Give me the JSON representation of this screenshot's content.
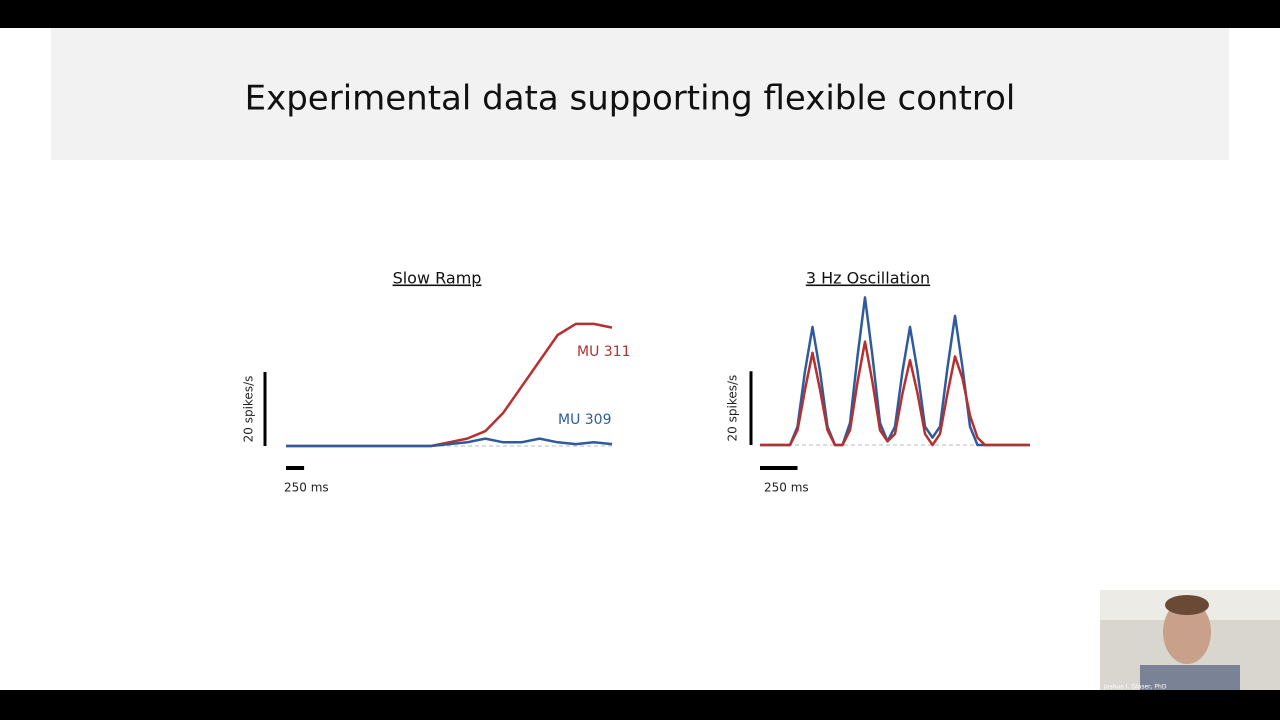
{
  "slide": {
    "title": "Experimental data supporting flexible control"
  },
  "chart_data": [
    {
      "type": "line",
      "title": "Slow Ramp",
      "x": [
        0,
        250,
        500,
        750,
        1000,
        1250,
        1500,
        1750,
        2000,
        2250,
        2500,
        2750,
        3000,
        3250,
        3500,
        3750,
        4000,
        4250,
        4500
      ],
      "series": [
        {
          "name": "MU 311",
          "color": "#b5302f",
          "values": [
            0,
            0,
            0,
            0,
            0,
            0,
            0,
            0,
            0,
            1,
            2,
            4,
            9,
            16,
            23,
            30,
            33,
            33,
            32
          ]
        },
        {
          "name": "MU 309",
          "color": "#2f5b9c",
          "values": [
            0,
            0,
            0,
            0,
            0,
            0,
            0,
            0,
            0,
            0.5,
            1,
            2,
            1,
            1,
            2,
            1,
            0.5,
            1,
            0.5
          ]
        }
      ],
      "xlim": [
        0,
        4500
      ],
      "ylim": [
        0,
        40
      ],
      "scale_bar": {
        "x": {
          "value": 250,
          "label": "250 ms"
        },
        "y": {
          "value": 20,
          "label": "20 spikes/s"
        }
      }
    },
    {
      "type": "line",
      "title": "3 Hz Oscillation",
      "x": [
        0,
        50,
        100,
        150,
        200,
        250,
        300,
        350,
        400,
        450,
        500,
        550,
        600,
        650,
        700,
        750,
        800,
        850,
        900,
        950,
        1000,
        1050,
        1100,
        1150,
        1200,
        1250,
        1300,
        1350,
        1400,
        1450,
        1500,
        1550,
        1600,
        1650,
        1700,
        1750,
        1800
      ],
      "series": [
        {
          "name": "Blue",
          "color": "#2f5b9c",
          "values": [
            0,
            0,
            0,
            0,
            0,
            5,
            20,
            32,
            20,
            5,
            0,
            0,
            6,
            24,
            40,
            24,
            6,
            1,
            5,
            20,
            32,
            20,
            5,
            2,
            5,
            21,
            35,
            21,
            5,
            0,
            0,
            0,
            0,
            0,
            0,
            0,
            0
          ]
        },
        {
          "name": "Red",
          "color": "#b5302f",
          "values": [
            0,
            0,
            0,
            0,
            0,
            4,
            15,
            25,
            15,
            4,
            0,
            0,
            4,
            17,
            28,
            17,
            4,
            1,
            3,
            14,
            23,
            14,
            3,
            0,
            3,
            14,
            24,
            18,
            8,
            2,
            0,
            0,
            0,
            0,
            0,
            0,
            0
          ]
        }
      ],
      "xlim": [
        0,
        1800
      ],
      "ylim": [
        0,
        42
      ],
      "scale_bar": {
        "x": {
          "value": 250,
          "label": "250 ms"
        },
        "y": {
          "value": 20,
          "label": "20 spikes/s"
        }
      }
    }
  ],
  "video": {
    "caption": "Joshua I. Glaser, PhD"
  }
}
